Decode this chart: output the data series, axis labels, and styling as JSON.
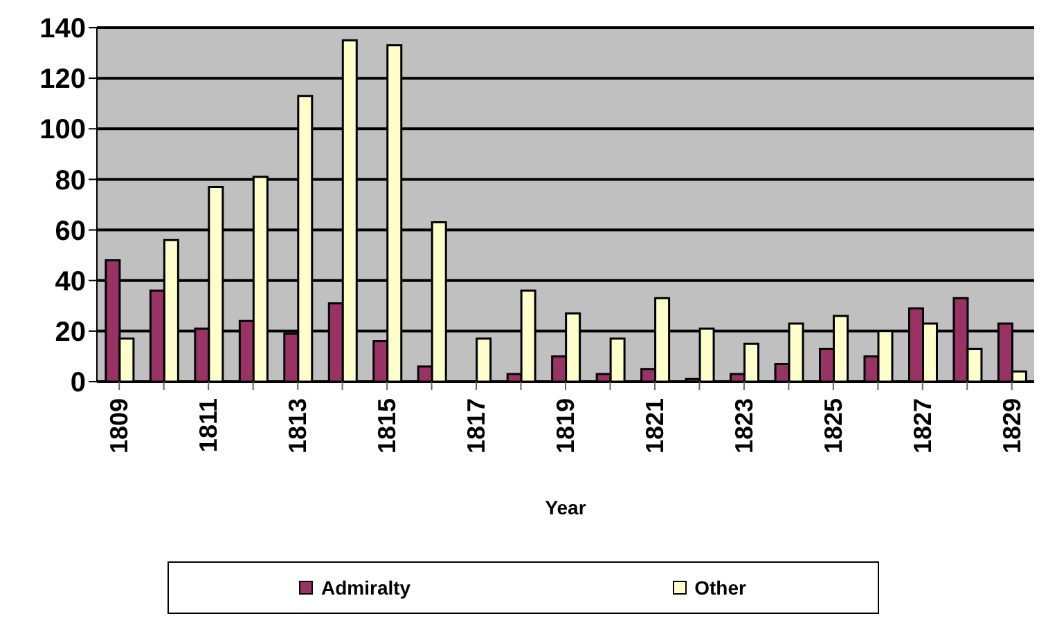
{
  "chart_data": {
    "type": "bar",
    "xlabel": "Year",
    "categories": [
      "1809",
      null,
      "1811",
      null,
      "1813",
      null,
      "1815",
      null,
      "1817",
      null,
      "1819",
      null,
      "1821",
      null,
      "1823",
      null,
      "1825",
      null,
      "1827",
      null,
      "1829"
    ],
    "series": [
      {
        "name": "Admiralty",
        "color": "#993366",
        "values": [
          48,
          36,
          21,
          24,
          19,
          31,
          16,
          6,
          0,
          3,
          10,
          3,
          5,
          1,
          3,
          7,
          13,
          10,
          29,
          33,
          23
        ]
      },
      {
        "name": "Other",
        "color": "#ffffcc",
        "values": [
          17,
          56,
          77,
          81,
          113,
          135,
          133,
          63,
          17,
          36,
          27,
          17,
          33,
          21,
          15,
          23,
          26,
          20,
          23,
          13,
          4
        ]
      }
    ],
    "ylim": [
      0,
      140
    ],
    "yticks": [
      0,
      20,
      40,
      60,
      80,
      100,
      120,
      140
    ],
    "grid": "y",
    "legend": "bottom"
  }
}
